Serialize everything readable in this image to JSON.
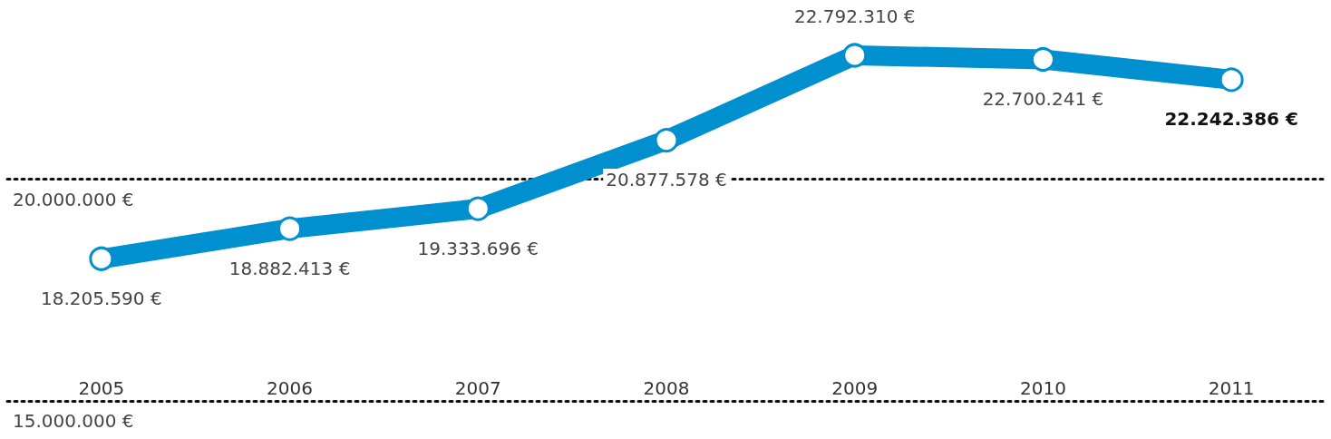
{
  "chart_data": {
    "type": "line",
    "categories": [
      "2005",
      "2006",
      "2007",
      "2008",
      "2009",
      "2010",
      "2011"
    ],
    "series": [
      {
        "color": "#0090d0",
        "values": [
          18205590,
          18882413,
          19333696,
          20877578,
          22792310,
          22700241,
          22242386
        ],
        "value_labels": [
          "18.205.590 €",
          "18.882.413 €",
          "19.333.696 €",
          "20.877.578 €",
          "22.792.310 €",
          "22.700.241 €",
          "22.242.386 €"
        ]
      }
    ],
    "ref_lines": [
      {
        "axis": "y",
        "value": 20000000,
        "label": "20.000.000 €",
        "color": "#111111",
        "line_style": "dotted"
      },
      {
        "axis": "y",
        "value": 15000000,
        "label": "15.000.000 €",
        "color": "#111111",
        "line_style": "dotted"
      }
    ],
    "line_style": "solid",
    "marker": "circle"
  }
}
